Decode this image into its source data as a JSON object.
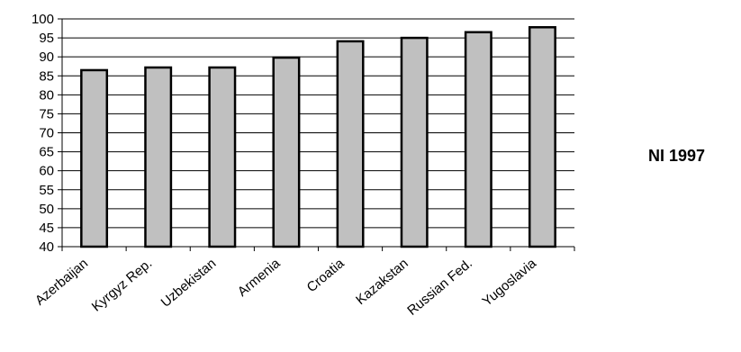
{
  "chart_data": {
    "type": "bar",
    "categories": [
      "Azerbaijan",
      "Kyrgyz Rep.",
      "Uzbekistan",
      "Armenia",
      "Croatia",
      "Kazakstan",
      "Russian Fed.",
      "Yugoslavia"
    ],
    "series": [
      {
        "name": "NI 1997",
        "values": [
          86.5,
          87.2,
          87.2,
          89.8,
          94.1,
          95.0,
          96.5,
          97.8
        ]
      }
    ],
    "ylim": [
      40,
      100
    ],
    "yticks": [
      40,
      45,
      50,
      55,
      60,
      65,
      70,
      75,
      80,
      85,
      90,
      95,
      100
    ],
    "grid": true,
    "legend_position": "right",
    "colors": {
      "bar_fill": "#c0c0c0",
      "bar_stroke": "#000000",
      "grid": "#000000"
    }
  }
}
